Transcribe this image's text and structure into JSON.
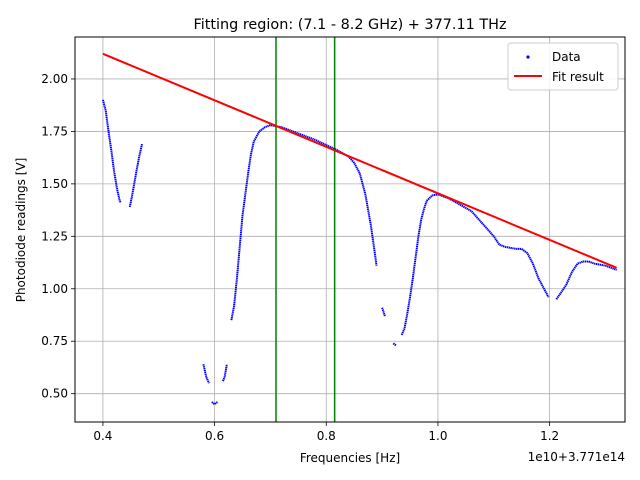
{
  "chart_data": {
    "type": "scatter",
    "title": "Fitting region: (7.1 - 8.2 GHz) + 377.11 THz",
    "xlabel": "Frequencies [Hz]",
    "ylabel": "Photodiode readings [V]",
    "x_offset_text": "1e10+3.771e14",
    "xlim": [
      0.35,
      1.335
    ],
    "ylim": [
      0.365,
      2.2
    ],
    "x_ticks": [
      "0.4",
      "0.6",
      "0.8",
      "1.0",
      "1.2"
    ],
    "x_tick_values": [
      0.4,
      0.6,
      0.8,
      1.0,
      1.2
    ],
    "y_ticks": [
      "0.50",
      "0.75",
      "1.00",
      "1.25",
      "1.50",
      "1.75",
      "2.00"
    ],
    "y_tick_values": [
      0.5,
      0.75,
      1.0,
      1.25,
      1.5,
      1.75,
      2.0
    ],
    "grid": true,
    "legend_position": "top-right",
    "series": [
      {
        "name": "Data",
        "kind": "scatter",
        "color": "#0000ff",
        "segments": [
          [
            [
              0.4,
              1.9
            ],
            [
              0.405,
              1.85
            ],
            [
              0.41,
              1.75
            ],
            [
              0.415,
              1.66
            ],
            [
              0.42,
              1.56
            ],
            [
              0.425,
              1.48
            ],
            [
              0.43,
              1.42
            ],
            [
              0.432,
              1.41
            ]
          ],
          [
            [
              0.448,
              1.39
            ],
            [
              0.452,
              1.44
            ],
            [
              0.456,
              1.5
            ],
            [
              0.46,
              1.56
            ],
            [
              0.465,
              1.63
            ],
            [
              0.47,
              1.69
            ]
          ],
          [
            [
              0.58,
              0.64
            ],
            [
              0.585,
              0.58
            ],
            [
              0.59,
              0.55
            ]
          ],
          [
            [
              0.595,
              0.46
            ],
            [
              0.6,
              0.45
            ],
            [
              0.605,
              0.46
            ]
          ],
          [
            [
              0.615,
              0.56
            ],
            [
              0.618,
              0.58
            ],
            [
              0.622,
              0.64
            ]
          ],
          [
            [
              0.63,
              0.85
            ],
            [
              0.635,
              0.92
            ],
            [
              0.64,
              1.05
            ],
            [
              0.645,
              1.2
            ],
            [
              0.65,
              1.35
            ],
            [
              0.655,
              1.45
            ],
            [
              0.66,
              1.55
            ],
            [
              0.665,
              1.64
            ],
            [
              0.67,
              1.7
            ],
            [
              0.68,
              1.75
            ],
            [
              0.69,
              1.77
            ],
            [
              0.7,
              1.78
            ],
            [
              0.71,
              1.775
            ],
            [
              0.72,
              1.77
            ],
            [
              0.74,
              1.75
            ],
            [
              0.76,
              1.73
            ],
            [
              0.78,
              1.71
            ],
            [
              0.8,
              1.685
            ],
            [
              0.82,
              1.66
            ],
            [
              0.84,
              1.63
            ],
            [
              0.85,
              1.6
            ],
            [
              0.86,
              1.55
            ],
            [
              0.87,
              1.45
            ],
            [
              0.88,
              1.3
            ],
            [
              0.888,
              1.15
            ],
            [
              0.89,
              1.11
            ]
          ],
          [
            [
              0.9,
              0.91
            ],
            [
              0.905,
              0.87
            ]
          ],
          [
            [
              0.92,
              0.74
            ],
            [
              0.925,
              0.73
            ]
          ],
          [
            [
              0.935,
              0.78
            ],
            [
              0.94,
              0.81
            ],
            [
              0.945,
              0.88
            ],
            [
              0.95,
              0.96
            ],
            [
              0.955,
              1.05
            ],
            [
              0.96,
              1.15
            ],
            [
              0.965,
              1.25
            ],
            [
              0.97,
              1.33
            ],
            [
              0.975,
              1.38
            ],
            [
              0.98,
              1.42
            ],
            [
              0.99,
              1.445
            ],
            [
              1.0,
              1.45
            ],
            [
              1.02,
              1.43
            ],
            [
              1.04,
              1.4
            ],
            [
              1.06,
              1.37
            ],
            [
              1.08,
              1.31
            ],
            [
              1.1,
              1.25
            ],
            [
              1.11,
              1.21
            ],
            [
              1.12,
              1.2
            ],
            [
              1.14,
              1.19
            ],
            [
              1.15,
              1.19
            ],
            [
              1.16,
              1.17
            ],
            [
              1.17,
              1.12
            ],
            [
              1.18,
              1.05
            ],
            [
              1.19,
              1.0
            ],
            [
              1.198,
              0.96
            ]
          ],
          [
            [
              1.212,
              0.95
            ],
            [
              1.22,
              0.98
            ],
            [
              1.23,
              1.02
            ],
            [
              1.24,
              1.08
            ],
            [
              1.25,
              1.12
            ],
            [
              1.26,
              1.13
            ],
            [
              1.27,
              1.13
            ],
            [
              1.28,
              1.12
            ],
            [
              1.3,
              1.11
            ],
            [
              1.32,
              1.09
            ]
          ]
        ]
      },
      {
        "name": "Fit result",
        "kind": "line",
        "color": "#ff0000",
        "x": [
          0.4,
          1.32
        ],
        "y": [
          2.12,
          1.1
        ]
      }
    ],
    "vertical_lines": [
      {
        "x": 0.71,
        "color": "#008000"
      },
      {
        "x": 0.815,
        "color": "#008000"
      }
    ]
  }
}
